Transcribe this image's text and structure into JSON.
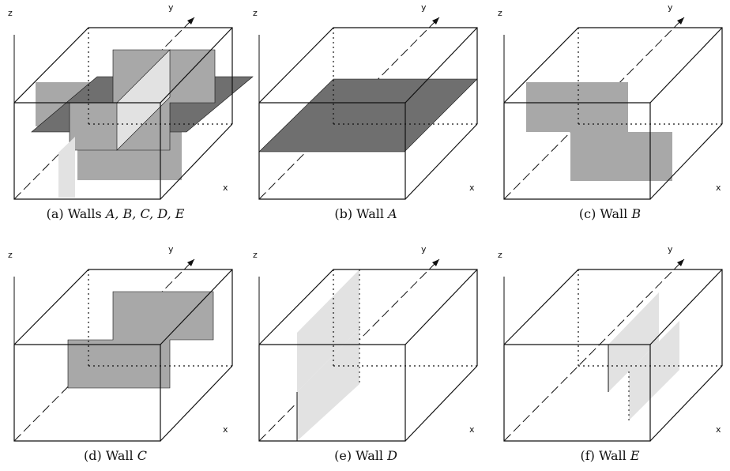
{
  "panels": [
    {
      "id": "a",
      "caption_prefix": "(a) Walls ",
      "caption_vars": "A, B, C, D, E",
      "axes": {
        "x": "x",
        "y": "y",
        "z": "z"
      }
    },
    {
      "id": "b",
      "caption_prefix": "(b) Wall ",
      "caption_vars": "A",
      "axes": {
        "x": "x",
        "y": "y",
        "z": "z"
      }
    },
    {
      "id": "c",
      "caption_prefix": "(c) Wall ",
      "caption_vars": "B",
      "axes": {
        "x": "x",
        "y": "y",
        "z": "z"
      }
    },
    {
      "id": "d",
      "caption_prefix": "(d) Wall ",
      "caption_vars": "C",
      "axes": {
        "x": "x",
        "y": "y",
        "z": "z"
      }
    },
    {
      "id": "e",
      "caption_prefix": "(e) Wall ",
      "caption_vars": "D",
      "axes": {
        "x": "x",
        "y": "y",
        "z": "z"
      }
    },
    {
      "id": "f",
      "caption_prefix": "(f) Wall ",
      "caption_vars": "E",
      "axes": {
        "x": "x",
        "y": "y",
        "z": "z"
      }
    }
  ],
  "colors": {
    "wall_A": "#6f6f6f",
    "wall_B": "#a8a8a8",
    "wall_C": "#a8a8a8",
    "wall_D": "#e2e2e2",
    "wall_E": "#e2e2e2",
    "edge": "#111111"
  }
}
